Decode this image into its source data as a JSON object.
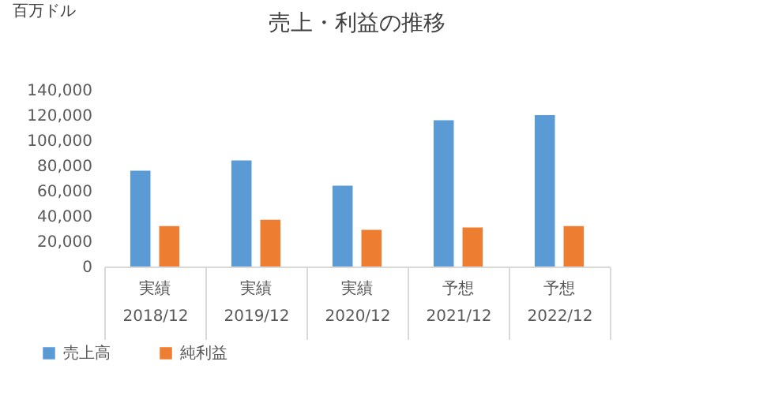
{
  "chart_data": {
    "type": "bar",
    "title": "売上・利益の推移",
    "ylabel": "百万ドル",
    "categories": [
      "2018/12",
      "2019/12",
      "2020/12",
      "2021/12",
      "2022/12"
    ],
    "annotations": [
      "実績",
      "実績",
      "実績",
      "予想",
      "予想"
    ],
    "series": [
      {
        "name": "売上高",
        "color": "#5b9bd5",
        "values": [
          76000,
          84000,
          64000,
          116000,
          120000
        ]
      },
      {
        "name": "純利益",
        "color": "#ed7d31",
        "values": [
          32000,
          37000,
          29000,
          31000,
          32000
        ]
      }
    ],
    "ylim": [
      0,
      140000
    ],
    "yticks": [
      0,
      {
        "value": 20000,
        "label": "20,000"
      },
      {
        "value": 40000,
        "label": "40,000"
      },
      {
        "value": 60000,
        "label": "60,000"
      },
      {
        "value": 80000,
        "label": "80,000"
      },
      {
        "value": 100000,
        "label": "100,000"
      },
      {
        "value": 120000,
        "label": "120,000"
      },
      {
        "value": 140000,
        "label": "140,000"
      }
    ],
    "grid": false,
    "legend": "bottom left"
  }
}
